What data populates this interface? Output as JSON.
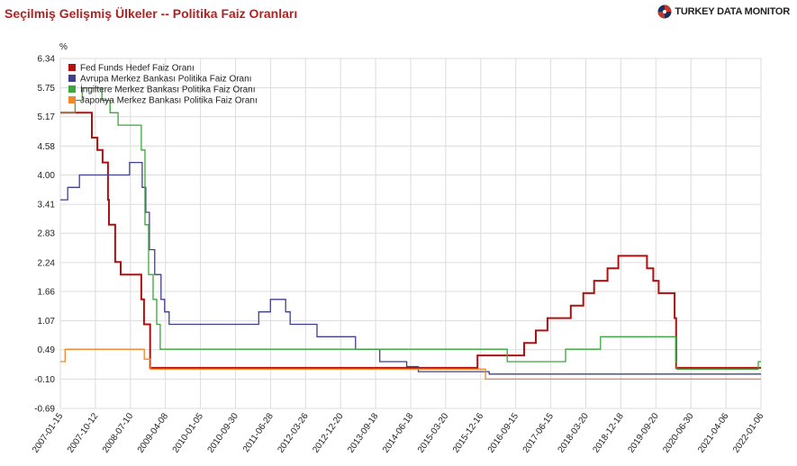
{
  "header": {
    "title": "Seçilmiş Gelişmiş Ülkeler -- Politika Faiz Oranları",
    "brand": "TURKEY DATA MONITOR"
  },
  "chart_data": {
    "type": "line",
    "step": true,
    "title": "Seçilmiş Gelişmiş Ülkeler -- Politika Faiz Oranları",
    "ylabel": "%",
    "y_ticks": [
      6.34,
      5.75,
      5.17,
      4.58,
      4.0,
      3.41,
      2.83,
      2.24,
      1.66,
      1.07,
      0.49,
      -0.1,
      -0.69
    ],
    "y_tick_labels": [
      "6.34",
      "5.75",
      "5.17",
      "4.58",
      "4.00",
      "3.41",
      "2.83",
      "2.24",
      "1.66",
      "1.07",
      "0.49",
      "-0.10",
      "-0.69"
    ],
    "ylim": [
      -0.69,
      6.34
    ],
    "xlim": [
      "2007-01-15",
      "2022-01-06"
    ],
    "x_tick_labels": [
      "2007-01-15",
      "2007-10-12",
      "2008-07-10",
      "2009-04-08",
      "2010-01-05",
      "2010-09-30",
      "2011-06-28",
      "2012-03-26",
      "2012-12-20",
      "2013-09-18",
      "2014-06-18",
      "2015-03-20",
      "2015-12-16",
      "2016-09-15",
      "2017-06-15",
      "2018-03-20",
      "2018-12-18",
      "2019-09-20",
      "2020-06-30",
      "2021-04-06",
      "2022-01-06"
    ],
    "grid": true,
    "legend": "top-left",
    "series": [
      {
        "name": "Fed Funds Hedef Faiz Oranı",
        "color": "#b01010",
        "points": [
          [
            "2007-01-15",
            5.25
          ],
          [
            "2007-09-18",
            4.75
          ],
          [
            "2007-10-31",
            4.5
          ],
          [
            "2007-12-11",
            4.25
          ],
          [
            "2008-01-22",
            3.5
          ],
          [
            "2008-01-30",
            3.0
          ],
          [
            "2008-03-18",
            2.25
          ],
          [
            "2008-04-30",
            2.0
          ],
          [
            "2008-10-08",
            1.5
          ],
          [
            "2008-10-29",
            1.0
          ],
          [
            "2008-12-16",
            0.125
          ],
          [
            "2015-12-16",
            0.375
          ],
          [
            "2016-12-14",
            0.625
          ],
          [
            "2017-03-15",
            0.875
          ],
          [
            "2017-06-14",
            1.125
          ],
          [
            "2017-12-13",
            1.375
          ],
          [
            "2018-03-21",
            1.625
          ],
          [
            "2018-06-13",
            1.875
          ],
          [
            "2018-09-26",
            2.125
          ],
          [
            "2018-12-19",
            2.375
          ],
          [
            "2019-07-31",
            2.125
          ],
          [
            "2019-09-18",
            1.875
          ],
          [
            "2019-10-30",
            1.625
          ],
          [
            "2020-03-03",
            1.125
          ],
          [
            "2020-03-15",
            0.125
          ],
          [
            "2022-01-06",
            0.125
          ]
        ]
      },
      {
        "name": "Avrupa Merkez Bankası Politika Faiz Oranı",
        "color": "#3f3f8f",
        "points": [
          [
            "2007-01-15",
            3.5
          ],
          [
            "2007-03-14",
            3.75
          ],
          [
            "2007-06-13",
            4.0
          ],
          [
            "2008-07-09",
            4.25
          ],
          [
            "2008-10-15",
            3.75
          ],
          [
            "2008-11-12",
            3.25
          ],
          [
            "2008-12-10",
            2.5
          ],
          [
            "2009-01-21",
            2.0
          ],
          [
            "2009-03-11",
            1.5
          ],
          [
            "2009-04-08",
            1.25
          ],
          [
            "2009-05-13",
            1.0
          ],
          [
            "2011-04-13",
            1.25
          ],
          [
            "2011-07-13",
            1.5
          ],
          [
            "2011-11-09",
            1.25
          ],
          [
            "2011-12-14",
            1.0
          ],
          [
            "2012-07-11",
            0.75
          ],
          [
            "2013-05-08",
            0.5
          ],
          [
            "2013-11-13",
            0.25
          ],
          [
            "2014-06-11",
            0.15
          ],
          [
            "2014-09-10",
            0.05
          ],
          [
            "2016-03-16",
            0.0
          ],
          [
            "2022-01-06",
            0.0
          ]
        ]
      },
      {
        "name": "İngiltere Merkez Bankası Politika Faiz Oranı",
        "color": "#3aa83a",
        "points": [
          [
            "2007-01-15",
            5.25
          ],
          [
            "2007-05-10",
            5.5
          ],
          [
            "2007-07-05",
            5.75
          ],
          [
            "2007-12-06",
            5.5
          ],
          [
            "2008-02-07",
            5.25
          ],
          [
            "2008-04-10",
            5.0
          ],
          [
            "2008-10-08",
            4.5
          ],
          [
            "2008-11-06",
            3.0
          ],
          [
            "2008-12-04",
            2.0
          ],
          [
            "2009-01-08",
            1.5
          ],
          [
            "2009-02-05",
            1.0
          ],
          [
            "2009-03-05",
            0.5
          ],
          [
            "2016-08-04",
            0.25
          ],
          [
            "2017-11-02",
            0.5
          ],
          [
            "2018-08-02",
            0.75
          ],
          [
            "2020-03-11",
            0.25
          ],
          [
            "2020-03-19",
            0.1
          ],
          [
            "2021-12-16",
            0.25
          ],
          [
            "2022-01-06",
            0.25
          ]
        ]
      },
      {
        "name": "Japonya Merkez Bankası Politika Faiz Oranı",
        "color": "#f0882a",
        "points": [
          [
            "2007-01-15",
            0.25
          ],
          [
            "2007-02-21",
            0.5
          ],
          [
            "2008-10-31",
            0.3
          ],
          [
            "2008-12-19",
            0.1
          ],
          [
            "2016-02-16",
            -0.1
          ],
          [
            "2022-01-06",
            -0.1
          ]
        ]
      }
    ]
  }
}
